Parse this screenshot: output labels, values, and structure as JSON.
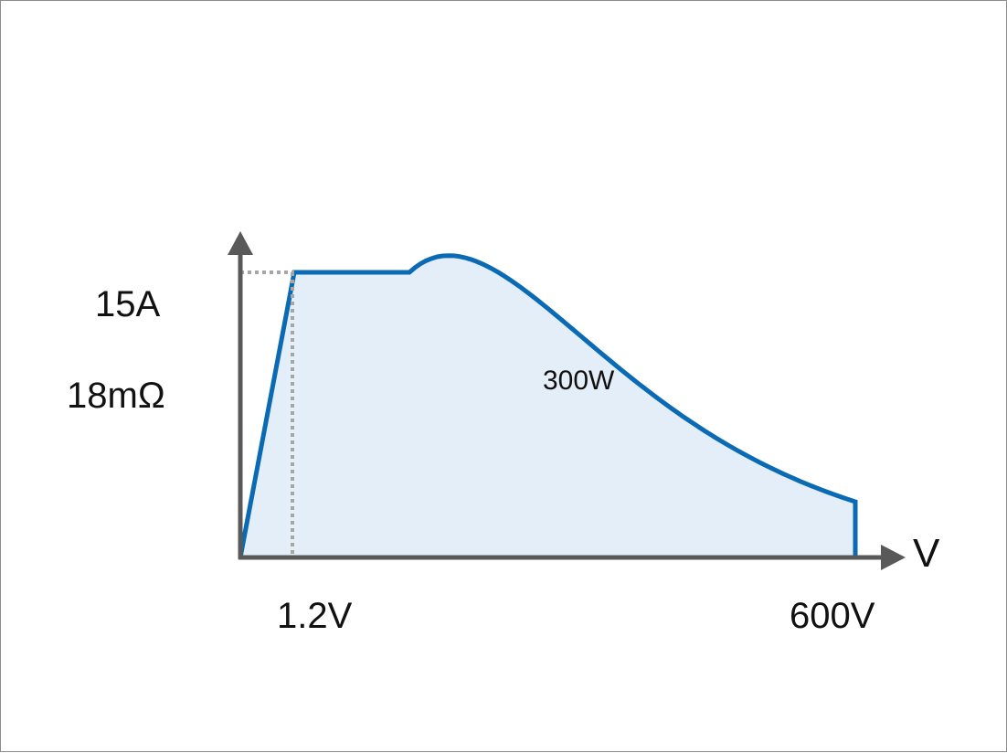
{
  "chart_data": {
    "type": "area",
    "xlabel": "V",
    "ylabel": "",
    "labels": {
      "current_limit": "15A",
      "resistance": "18mΩ",
      "power": "300W",
      "voltage_low": "1.2V",
      "voltage_max": "600V"
    },
    "current_limit_A": 15,
    "power_limit_W": 300,
    "voltage_max_V": 600,
    "resistance_mOhm": 18
  },
  "colors": {
    "line": "#0a6ab4",
    "fill": "#e3eef8",
    "axis": "#595959",
    "guide": "#a6a6a6"
  }
}
